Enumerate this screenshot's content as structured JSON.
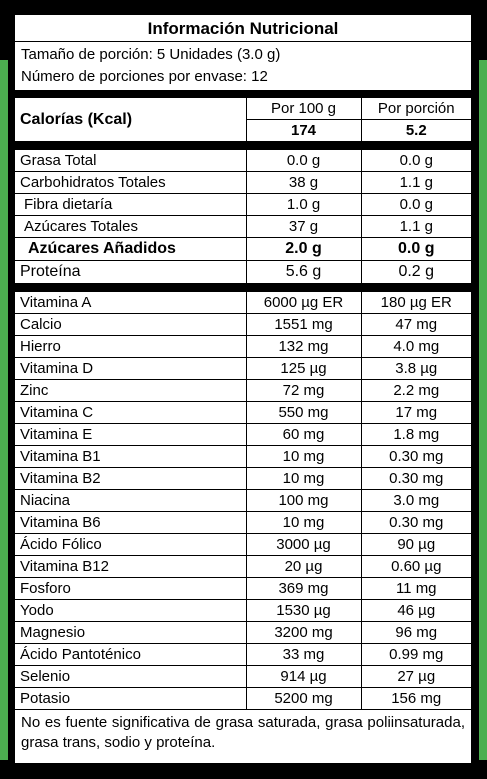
{
  "title": "Información  Nutricional",
  "serving": {
    "size": "Tamaño de porción: 5 Unidades (3.0 g)",
    "count": "Número de porciones por envase: 12"
  },
  "calories": {
    "label": "Calorías (Kcal)",
    "col_per100_label": "Por 100 g",
    "col_portion_label": "Por porción",
    "per100": "174",
    "portion": "5.2"
  },
  "macros": [
    {
      "name": "Grasa Total",
      "per100": "0.0 g",
      "portion": "0.0 g"
    },
    {
      "name": "Carbohidratos Totales",
      "per100": "38 g",
      "portion": "1.1 g"
    },
    {
      "name": "Fibra dietaría",
      "per100": "1.0 g",
      "portion": "0.0 g"
    },
    {
      "name": "Azúcares Totales",
      "per100": "37 g",
      "portion": "1.1 g"
    },
    {
      "name": "Azúcares Añadidos",
      "per100": "2.0 g",
      "portion": "0.0 g"
    },
    {
      "name": "Proteína",
      "per100": "5.6 g",
      "portion": "0.2 g"
    }
  ],
  "micros": [
    {
      "name": "Vitamina A",
      "per100": "6000 µg ER",
      "portion": "180 µg ER"
    },
    {
      "name": "Calcio",
      "per100": "1551 mg",
      "portion": "47 mg"
    },
    {
      "name": "Hierro",
      "per100": "132 mg",
      "portion": "4.0 mg"
    },
    {
      "name": "Vitamina D",
      "per100": "125 µg",
      "portion": "3.8 µg"
    },
    {
      "name": "Zinc",
      "per100": "72 mg",
      "portion": "2.2 mg"
    },
    {
      "name": "Vitamina C",
      "per100": "550 mg",
      "portion": "17 mg"
    },
    {
      "name": "Vitamina E",
      "per100": "60 mg",
      "portion": "1.8 mg"
    },
    {
      "name": "Vitamina B1",
      "per100": "10 mg",
      "portion": "0.30 mg"
    },
    {
      "name": "Vitamina B2",
      "per100": "10 mg",
      "portion": "0.30 mg"
    },
    {
      "name": "Niacina",
      "per100": "100 mg",
      "portion": "3.0 mg"
    },
    {
      "name": "Vitamina B6",
      "per100": "10 mg",
      "portion": "0.30 mg"
    },
    {
      "name": "Ácido Fólico",
      "per100": "3000 µg",
      "portion": "90 µg"
    },
    {
      "name": "Vitamina B12",
      "per100": "20 µg",
      "portion": "0.60 µg"
    },
    {
      "name": "Fosforo",
      "per100": "369 mg",
      "portion": "11 mg"
    },
    {
      "name": "Yodo",
      "per100": "1530 µg",
      "portion": "46 µg"
    },
    {
      "name": "Magnesio",
      "per100": "3200 mg",
      "portion": "96 mg"
    },
    {
      "name": "Ácido Pantoténico",
      "per100": "33 mg",
      "portion": "0.99 mg"
    },
    {
      "name": "Selenio",
      "per100": "914 µg",
      "portion": "27 µg"
    },
    {
      "name": "Potasio",
      "per100": "5200 mg",
      "portion": "156 mg"
    }
  ],
  "footnote": "No es fuente significativa de grasa saturada, grasa poliinsaturada, grasa trans, sodio y proteína.",
  "colors": {
    "background": "#000000",
    "accent": "#4caf50",
    "label": "#ffffff"
  }
}
